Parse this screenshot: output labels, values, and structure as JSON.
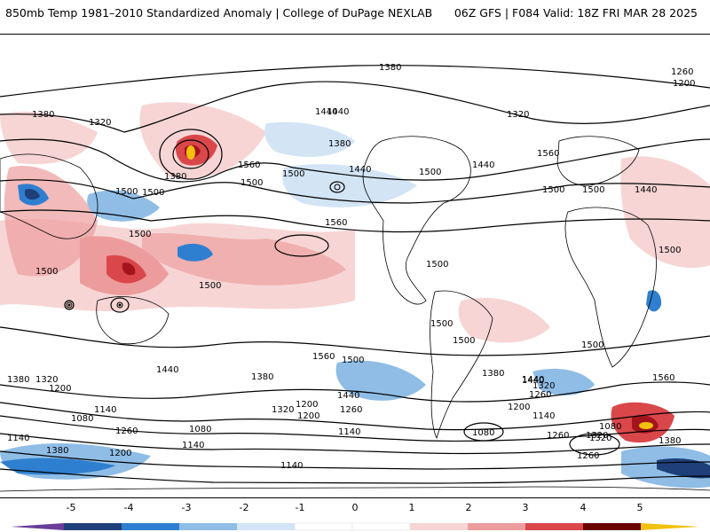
{
  "header": {
    "title": "850mb Temp 1981–2010 Standardized Anomaly | College of DuPage NEXLAB",
    "run_info": "06Z GFS | F084 Valid: 18Z FRI MAR 28 2025"
  },
  "map": {
    "contour_labels": [
      "1380",
      "1440",
      "1260",
      "1200",
      "1380",
      "1320",
      "1440",
      "1380",
      "1560",
      "1500",
      "1380",
      "1320",
      "1500",
      "1440",
      "1500",
      "1560",
      "1440",
      "1500",
      "1560",
      "1500",
      "1440",
      "1500",
      "1500",
      "1500",
      "1500",
      "1500",
      "1500",
      "1500",
      "1500",
      "1500",
      "1440",
      "1380",
      "1560",
      "1500",
      "1440",
      "1500",
      "1380",
      "1320",
      "1200",
      "1260",
      "1140",
      "1080",
      "1260",
      "1140",
      "1380",
      "1320",
      "1200",
      "1440",
      "1320",
      "1200",
      "1260",
      "1140",
      "1080",
      "1140",
      "1560",
      "1440",
      "1380",
      "1320",
      "1260",
      "1200",
      "1140",
      "1080",
      "1320",
      "1380",
      "1260",
      "1140",
      "1080",
      "1200"
    ],
    "colors": {
      "neg5": "#6a3d9a",
      "neg4": "#1f3f7a",
      "neg3": "#2f7fd0",
      "neg2": "#8fbde6",
      "neg1": "#d3e4f5",
      "pos1": "#f7d5d5",
      "pos2": "#ec9c9c",
      "pos3": "#d9474a",
      "pos4": "#a4141c",
      "pos5": "#6b0000",
      "extreme": "#f2c10b"
    }
  },
  "colorbar": {
    "ticks": [
      "-5",
      "-4",
      "-3",
      "-2",
      "-1",
      "0",
      "1",
      "2",
      "3",
      "4",
      "5"
    ]
  }
}
